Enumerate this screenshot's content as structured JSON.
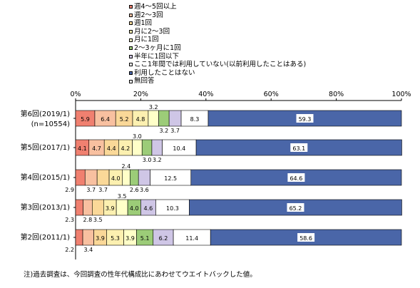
{
  "chart_data": {
    "type": "bar",
    "stacked": true,
    "orientation": "horizontal",
    "title": "",
    "xlabel": "",
    "ylabel": "",
    "xlim": [
      0,
      100
    ],
    "x_ticks": [
      "0%",
      "20%",
      "40%",
      "60%",
      "80%",
      "100%"
    ],
    "grid": false,
    "legend_position": "top",
    "categories": [
      {
        "label": "第6回(2019/1)",
        "sublabel": "(n=10554)"
      },
      {
        "label": "第5回(2017/1)",
        "sublabel": ""
      },
      {
        "label": "第4回(2015/1)",
        "sublabel": ""
      },
      {
        "label": "第3回(2013/1)",
        "sublabel": ""
      },
      {
        "label": "第2回(2011/1)",
        "sublabel": ""
      }
    ],
    "series": [
      {
        "name": "週4～5回以上",
        "color": "#f08070",
        "values": [
          5.9,
          4.1,
          2.9,
          2.3,
          2.2
        ]
      },
      {
        "name": "週2～3回",
        "color": "#f8c0a0",
        "values": [
          6.4,
          4.7,
          3.7,
          2.8,
          3.4
        ]
      },
      {
        "name": "週1回",
        "color": "#fad898",
        "values": [
          5.2,
          4.4,
          3.7,
          3.5,
          3.9
        ]
      },
      {
        "name": "月に2～3回",
        "color": "#fcf0b0",
        "values": [
          4.8,
          4.2,
          4.0,
          3.9,
          5.3
        ]
      },
      {
        "name": "月に1回",
        "color": "#ffffc8",
        "values": [
          3.2,
          3.0,
          2.4,
          3.5,
          3.9
        ]
      },
      {
        "name": "2～3ヶ月に1回",
        "color": "#9ccc78",
        "values": [
          3.2,
          3.0,
          2.6,
          4.0,
          5.1
        ]
      },
      {
        "name": "半年に1回以下",
        "color": "#cfc6e6",
        "values": [
          3.7,
          3.2,
          3.6,
          4.6,
          6.2
        ]
      },
      {
        "name": "ここ1年間では利用していない(以前利用したことはある)",
        "color": "#ffffff",
        "values": [
          8.3,
          10.4,
          12.5,
          10.3,
          11.4
        ]
      },
      {
        "name": "利用したことはない",
        "color": "#4a66a8",
        "values": [
          59.3,
          63.1,
          64.6,
          65.2,
          58.6
        ]
      },
      {
        "name": "無回答",
        "color": "#ffffff",
        "values": [
          0,
          0,
          0,
          0,
          0
        ]
      }
    ],
    "note": "注)過去調査は、今回調査の性年代構成比にあわせてウエイトバックした値。"
  }
}
